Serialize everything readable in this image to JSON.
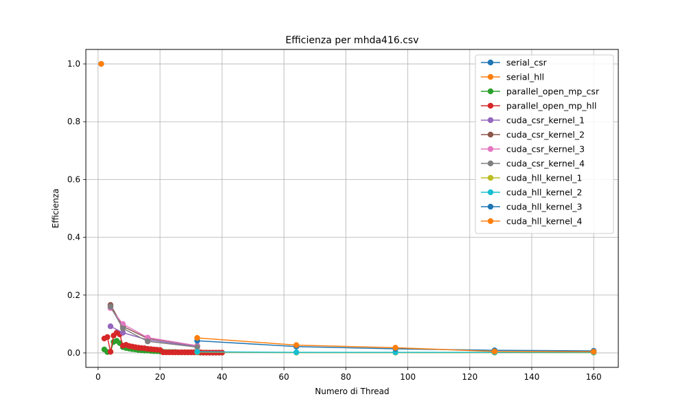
{
  "chart_data": {
    "type": "line",
    "title": "Efficienza per mhda416.csv",
    "xlabel": "Numero di Thread",
    "ylabel": "Efficienza",
    "xlim": [
      -3.95,
      167.95
    ],
    "ylim": [
      -0.05,
      1.05
    ],
    "xticks": [
      0,
      20,
      40,
      60,
      80,
      100,
      120,
      140,
      160
    ],
    "yticks": [
      0.0,
      0.2,
      0.4,
      0.6,
      0.8,
      1.0
    ],
    "xtick_labels": [
      "0",
      "20",
      "40",
      "60",
      "80",
      "100",
      "120",
      "140",
      "160"
    ],
    "ytick_labels": [
      "0.0",
      "0.2",
      "0.4",
      "0.6",
      "0.8",
      "1.0"
    ],
    "grid": true,
    "legend_position": "top-right",
    "series": [
      {
        "name": "serial_csr",
        "color": "#1f77b4",
        "x": [
          1
        ],
        "y": [
          1.0
        ]
      },
      {
        "name": "serial_hll",
        "color": "#ff7f0e",
        "x": [
          1
        ],
        "y": [
          1.0
        ]
      },
      {
        "name": "parallel_open_mp_csr",
        "color": "#2ca02c",
        "x": [
          2,
          3,
          4,
          5,
          6,
          7,
          8,
          9,
          10,
          11,
          12,
          13,
          14,
          15,
          16,
          17,
          18,
          19,
          20,
          21,
          22,
          23,
          24,
          25,
          26,
          27,
          28,
          29,
          30,
          31,
          32,
          33,
          34,
          35,
          36,
          37,
          38,
          39,
          40
        ],
        "y": [
          0.012,
          0.003,
          0.004,
          0.038,
          0.042,
          0.034,
          0.02,
          0.017,
          0.015,
          0.013,
          0.012,
          0.01,
          0.009,
          0.008,
          0.008,
          0.007,
          0.006,
          0.006,
          0.005,
          0.004,
          0.003,
          0.003,
          0.003,
          0.003,
          0.002,
          0.002,
          0.002,
          0.002,
          0.002,
          0.002,
          0.002,
          0.001,
          0.001,
          0.001,
          0.001,
          0.001,
          0.001,
          0.001,
          0.001
        ]
      },
      {
        "name": "parallel_open_mp_hll",
        "color": "#d62728",
        "x": [
          2,
          3,
          4,
          5,
          6,
          7,
          8,
          9,
          10,
          11,
          12,
          13,
          14,
          15,
          16,
          17,
          18,
          19,
          20,
          21,
          22,
          23,
          24,
          25,
          26,
          27,
          28,
          29,
          30,
          31,
          32,
          33,
          34,
          35,
          36,
          37,
          38,
          39,
          40
        ],
        "y": [
          0.05,
          0.055,
          0.004,
          0.06,
          0.07,
          0.064,
          0.025,
          0.028,
          0.024,
          0.022,
          0.02,
          0.018,
          0.017,
          0.016,
          0.014,
          0.013,
          0.012,
          0.011,
          0.01,
          0.002,
          0.002,
          0.002,
          0.002,
          0.002,
          0.002,
          0.002,
          0.002,
          0.002,
          0.002,
          0.002,
          0.002,
          0.002,
          0.001,
          0.001,
          0.001,
          0.001,
          0.001,
          0.001,
          0.001
        ]
      },
      {
        "name": "cuda_csr_kernel_1",
        "color": "#9467bd",
        "x": [
          4,
          8,
          16,
          32
        ],
        "y": [
          0.092,
          0.07,
          0.045,
          0.022
        ]
      },
      {
        "name": "cuda_csr_kernel_2",
        "color": "#8c564b",
        "x": [
          4,
          8,
          16,
          32
        ],
        "y": [
          0.166,
          0.092,
          0.05,
          0.025
        ]
      },
      {
        "name": "cuda_csr_kernel_3",
        "color": "#e377c2",
        "x": [
          4,
          8,
          16,
          32
        ],
        "y": [
          0.155,
          0.1,
          0.053,
          0.025
        ]
      },
      {
        "name": "cuda_csr_kernel_4",
        "color": "#7f7f7f",
        "x": [
          4,
          8,
          16,
          32
        ],
        "y": [
          0.16,
          0.085,
          0.04,
          0.02
        ]
      },
      {
        "name": "cuda_hll_kernel_1",
        "color": "#bcbd22",
        "x": [
          32,
          64,
          96,
          128,
          160
        ],
        "y": [
          0.003,
          0.001,
          0.001,
          0.001,
          0.001
        ]
      },
      {
        "name": "cuda_hll_kernel_2",
        "color": "#17becf",
        "x": [
          32,
          64,
          96,
          128,
          160
        ],
        "y": [
          0.004,
          0.002,
          0.002,
          0.002,
          0.002
        ]
      },
      {
        "name": "cuda_hll_kernel_3",
        "color": "#1f77b4",
        "x": [
          32,
          64,
          96,
          128,
          160
        ],
        "y": [
          0.042,
          0.022,
          0.014,
          0.009,
          0.007
        ]
      },
      {
        "name": "cuda_hll_kernel_4",
        "color": "#ff7f0e",
        "x": [
          32,
          64,
          96,
          128,
          160
        ],
        "y": [
          0.052,
          0.027,
          0.018,
          0.005,
          0.004
        ]
      }
    ]
  }
}
